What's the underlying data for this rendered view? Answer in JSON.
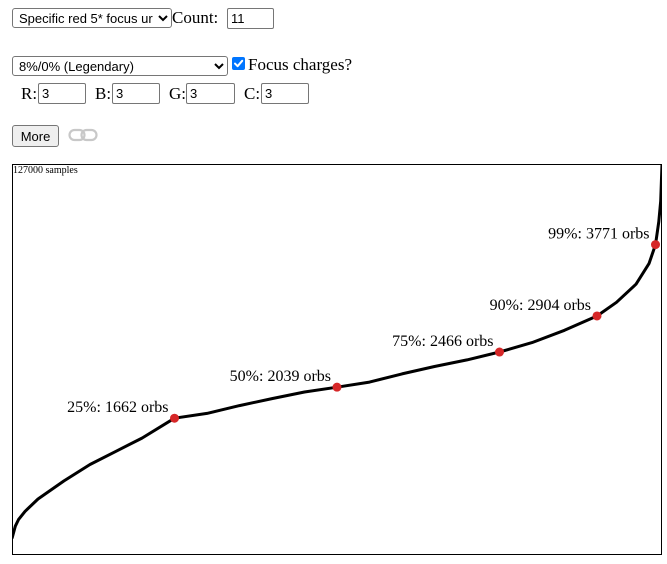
{
  "controls": {
    "mode_select": {
      "value": "Specific red 5* focus ur",
      "options": [
        "Specific red 5* focus ur"
      ]
    },
    "count": {
      "label": "Count:",
      "value": "11"
    },
    "rate_select": {
      "value": "8%/0% (Legendary)",
      "options": [
        "8%/0% (Legendary)"
      ]
    },
    "focus_charges": {
      "label": "Focus charges?",
      "checked": true
    },
    "colors": [
      {
        "label": "R:",
        "value": "3"
      },
      {
        "label": "B:",
        "value": "3"
      },
      {
        "label": "G:",
        "value": "3"
      },
      {
        "label": "C:",
        "value": "3"
      }
    ],
    "more_label": "More",
    "link_icon": "link-icon"
  },
  "chart_data": {
    "type": "line",
    "samples_label": "127000 samples",
    "x_percentiles": [
      0,
      0.5,
      1,
      2,
      4,
      8,
      12,
      16,
      20,
      25,
      30,
      35,
      40,
      45,
      50,
      55,
      60,
      65,
      70,
      75,
      80,
      85,
      90,
      93,
      96,
      98,
      99,
      99.5,
      99.8,
      100
    ],
    "y_orbs": [
      200,
      350,
      430,
      530,
      680,
      900,
      1100,
      1260,
      1420,
      1662,
      1720,
      1815,
      1900,
      1980,
      2039,
      2100,
      2200,
      2290,
      2370,
      2466,
      2580,
      2730,
      2904,
      3070,
      3290,
      3540,
      3771,
      4050,
      4300,
      4750
    ],
    "markers": [
      {
        "pct": 25,
        "orbs": 1662,
        "label": "25%: 1662 orbs"
      },
      {
        "pct": 50,
        "orbs": 2039,
        "label": "50%: 2039 orbs"
      },
      {
        "pct": 75,
        "orbs": 2466,
        "label": "75%: 2466 orbs"
      },
      {
        "pct": 90,
        "orbs": 2904,
        "label": "90%: 2904 orbs"
      },
      {
        "pct": 99,
        "orbs": 3771,
        "label": "99%: 3771 orbs"
      }
    ],
    "xlim": [
      0,
      100
    ],
    "ylim": [
      0,
      4750
    ],
    "line_color": "#000000",
    "marker_color": "#d62728"
  }
}
